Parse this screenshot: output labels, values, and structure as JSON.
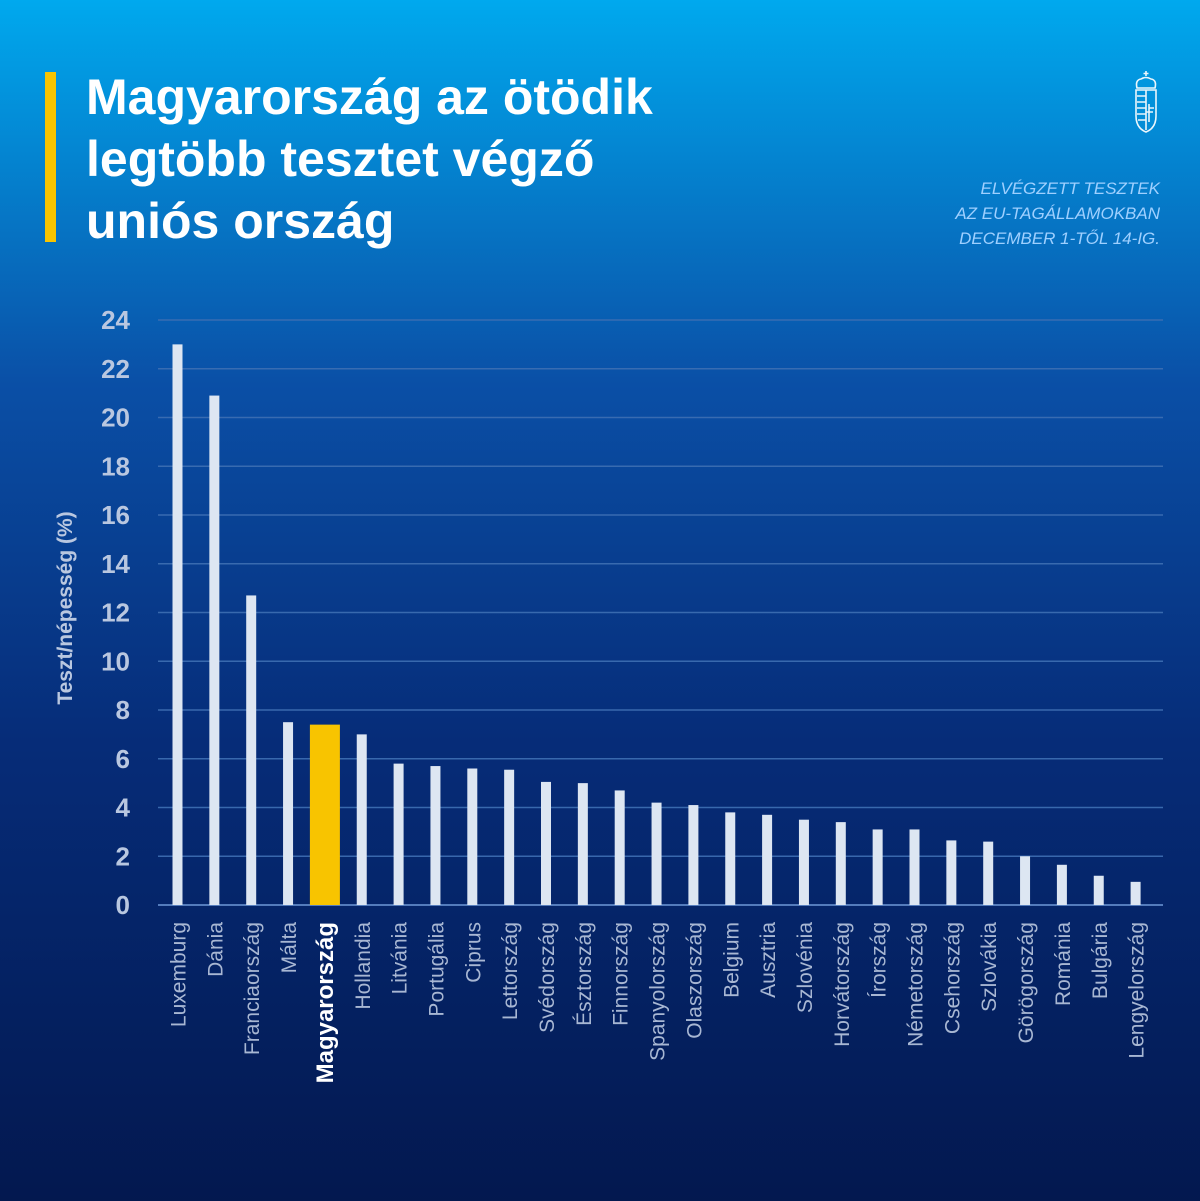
{
  "header": {
    "title_lines": [
      "Magyarország az ötödik",
      "legtöbb tesztet végző",
      "uniós ország"
    ],
    "subtitle_lines": [
      "ELVÉGZETT TESZTEK",
      "AZ EU-TAGÁLLAMOKBAN",
      "DECEMBER 1-TŐL 14-IG."
    ],
    "logo_icon": "hungarian-coat-of-arms-icon"
  },
  "colors": {
    "bar": "#dde6f2",
    "highlight": "#f8c400",
    "grid": "#3e6fb3",
    "axis_text": "#b9c7e0",
    "label_text": "#a8b7d3",
    "highlight_text": "#ffffff",
    "accent": "#f8c400"
  },
  "chart_data": {
    "type": "bar",
    "ylabel": "Teszt/népesség (%)",
    "xlabel": "",
    "ylim": [
      0,
      24
    ],
    "yticks": [
      0,
      2,
      4,
      6,
      8,
      10,
      12,
      14,
      16,
      18,
      20,
      22,
      24
    ],
    "grid": true,
    "highlight": "Magyarország",
    "categories": [
      "Luxemburg",
      "Dánia",
      "Franciaország",
      "Málta",
      "Magyarország",
      "Hollandia",
      "Litvánia",
      "Portugália",
      "Ciprus",
      "Lettország",
      "Svédország",
      "Észtország",
      "Finnország",
      "Spanyolország",
      "Olaszország",
      "Belgium",
      "Ausztria",
      "Szlovénia",
      "Horvátország",
      "Írország",
      "Németország",
      "Csehország",
      "Szlovákia",
      "Görögország",
      "Románia",
      "Bulgária",
      "Lengyelország"
    ],
    "values": [
      23.0,
      20.9,
      12.7,
      7.5,
      7.4,
      7.0,
      5.8,
      5.7,
      5.6,
      5.55,
      5.05,
      5.0,
      4.7,
      4.2,
      4.1,
      3.8,
      3.7,
      3.5,
      3.4,
      3.1,
      3.1,
      2.65,
      2.6,
      2.0,
      1.65,
      1.2,
      0.95
    ]
  }
}
